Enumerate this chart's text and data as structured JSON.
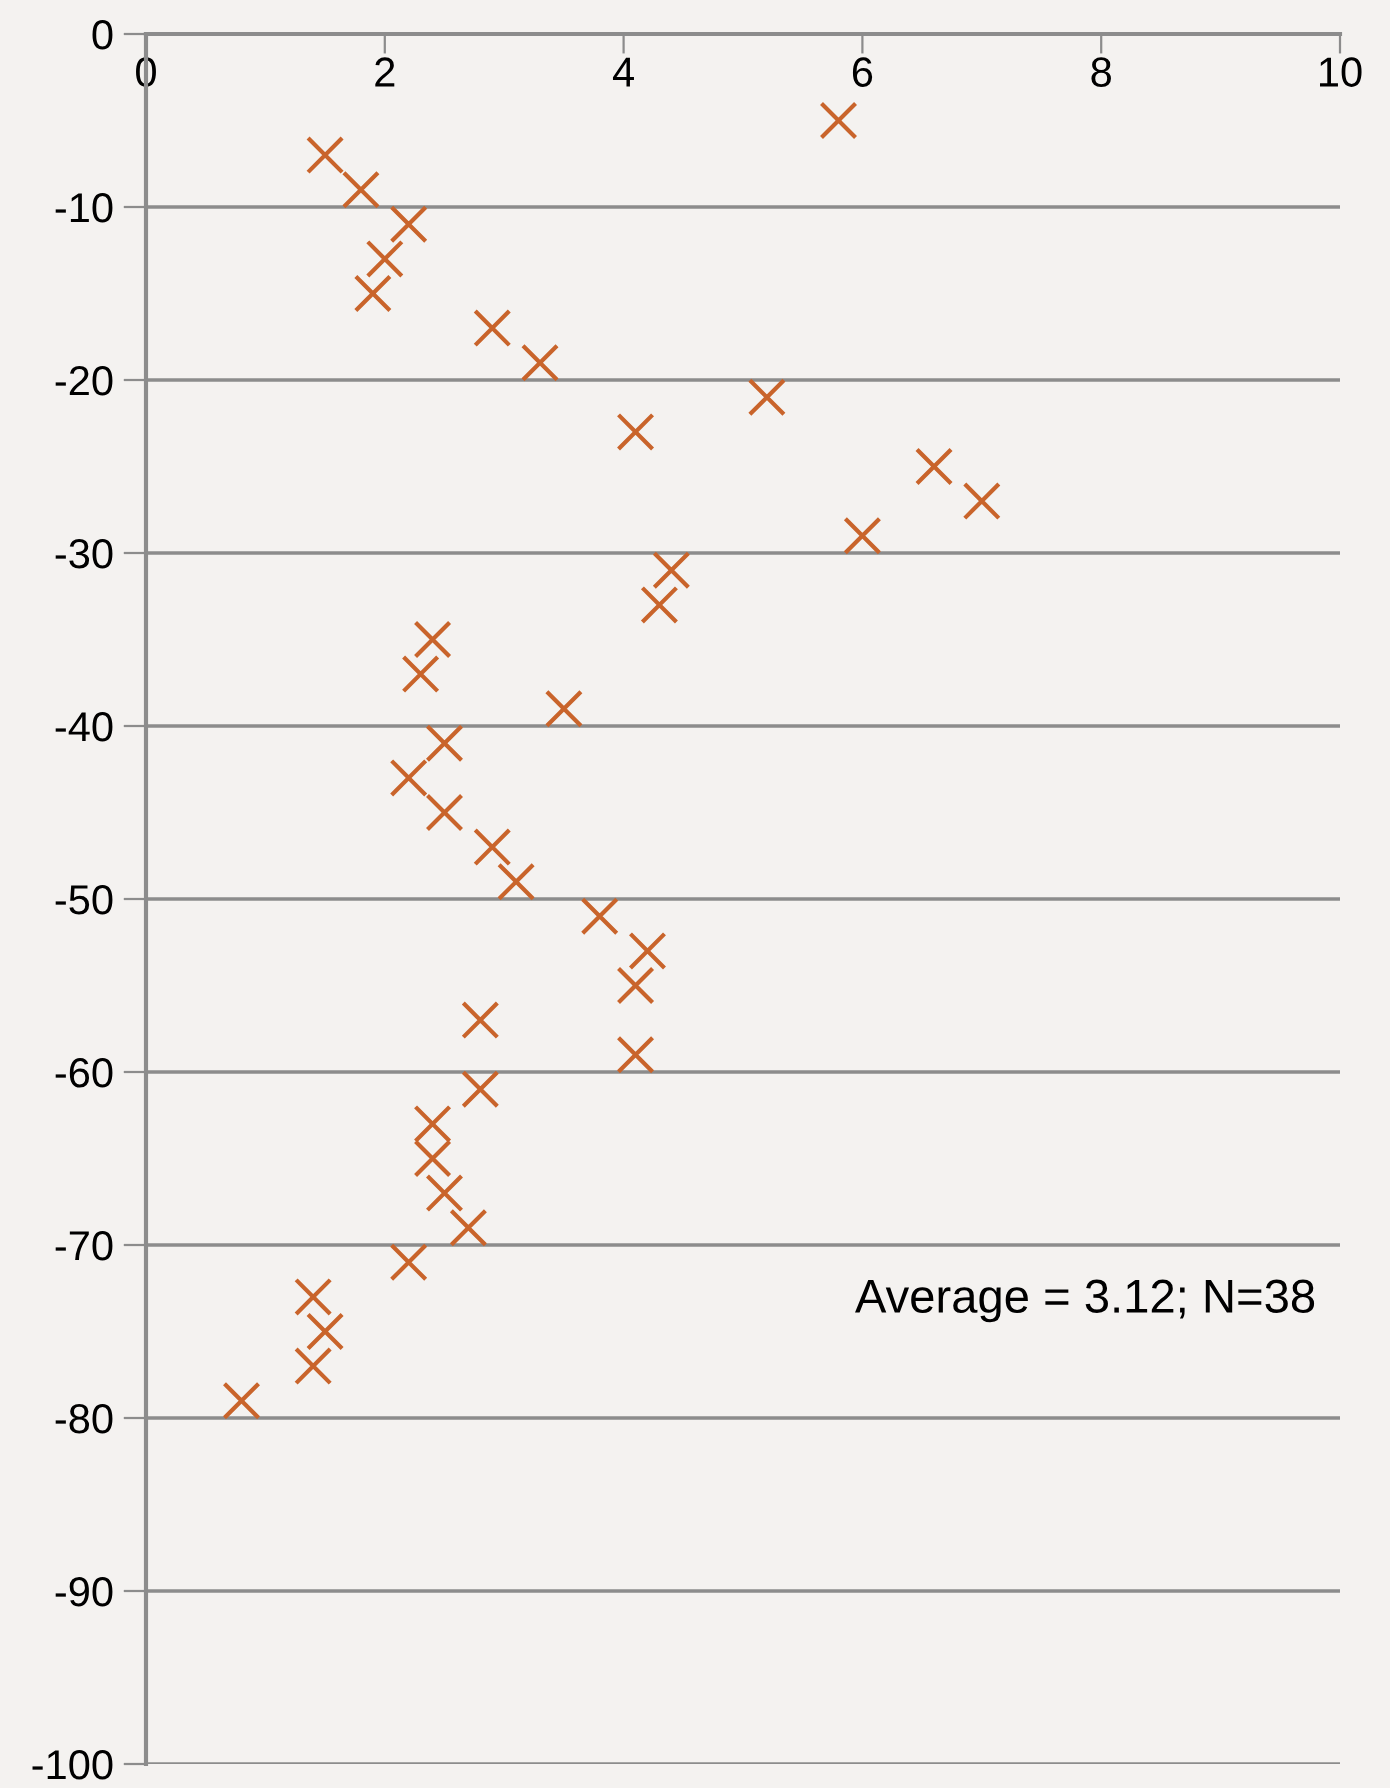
{
  "chart_data": {
    "type": "scatter",
    "marker": "cross",
    "grid": "y",
    "x": [
      5.8,
      1.5,
      1.8,
      2.2,
      2.0,
      1.9,
      2.9,
      3.3,
      5.2,
      4.1,
      6.6,
      7.0,
      6.0,
      4.4,
      4.3,
      2.4,
      2.3,
      3.5,
      2.5,
      2.2,
      2.5,
      2.9,
      3.1,
      3.8,
      4.2,
      4.1,
      2.8,
      4.1,
      2.8,
      2.4,
      2.4,
      2.5,
      2.7,
      2.2,
      1.4,
      1.5,
      1.4,
      0.8
    ],
    "series": [
      {
        "color": "#c9642b",
        "values": [
          -5,
          -7,
          -9,
          -11,
          -13,
          -15,
          -17,
          -19,
          -21,
          -23,
          -25,
          -27,
          -29,
          -31,
          -33,
          -35,
          -37,
          -39,
          -41,
          -43,
          -45,
          -47,
          -49,
          -51,
          -53,
          -55,
          -57,
          -59,
          -61,
          -63,
          -65,
          -67,
          -69,
          -71,
          -73,
          -75,
          -77,
          -79
        ]
      }
    ],
    "xlim": [
      0,
      10
    ],
    "xticks": [
      0,
      2,
      4,
      6,
      8,
      10
    ],
    "ylim": [
      -100,
      0
    ],
    "yticks": [
      -100,
      -90,
      -80,
      -70,
      -60,
      -50,
      -40,
      -30,
      -20,
      -10,
      0
    ],
    "annotations": [
      "Average = 3.12; N=38"
    ]
  }
}
